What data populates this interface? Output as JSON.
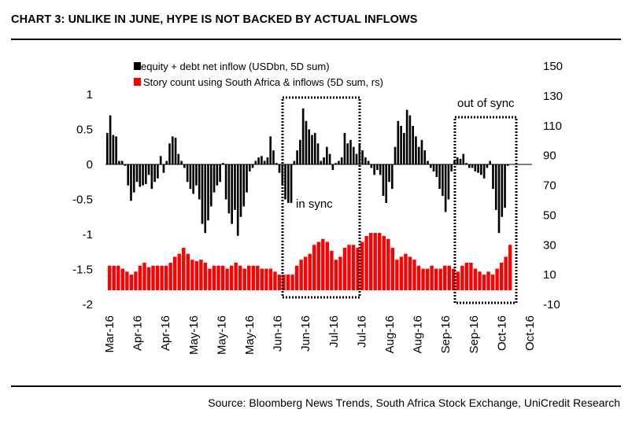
{
  "header": {
    "title": "CHART 3: UNLIKE IN JUNE, HYPE IS NOT BACKED BY ACTUAL INFLOWS"
  },
  "footer": {
    "source": "Source: Bloomberg News Trends, South Africa Stock Exchange, UniCredit Research"
  },
  "colors": {
    "inflow": "#000000",
    "story": "#ff0000",
    "box": "#000000"
  },
  "chart_data": {
    "type": "bar",
    "title": "CHART 3: UNLIKE IN JUNE, HYPE IS NOT BACKED BY ACTUAL INFLOWS",
    "xlabel": "",
    "ylabel": "",
    "x_tick_labels": [
      "Mar-16",
      "Apr-16",
      "Apr-16",
      "May-16",
      "May-16",
      "May-16",
      "Jun-16",
      "Jun-16",
      "Jul-16",
      "Jul-16",
      "Aug-16",
      "Aug-16",
      "Sep-16",
      "Sep-16",
      "Oct-16",
      "Oct-16"
    ],
    "left_axis": {
      "ylim": [
        -2,
        1
      ],
      "ticks": [
        1,
        0.5,
        0,
        -0.5,
        -1,
        -1.5,
        -2
      ],
      "tick_labels": [
        "1",
        "0.5",
        "0",
        "-0.5",
        "-1",
        "-1.5",
        "-2"
      ]
    },
    "right_axis": {
      "ylim": [
        -10,
        150
      ],
      "ticks": [
        150,
        130,
        110,
        90,
        70,
        50,
        30,
        10,
        -10
      ],
      "tick_labels": [
        "150",
        "130",
        "110",
        "90",
        "70",
        "50",
        "30",
        "10",
        "-10"
      ]
    },
    "legend": [
      "equity + debt net inflow (USDbn, 5D sum)",
      "Story count using South Africa & inflows (5D sum, rs)"
    ],
    "legend_position": "top-center",
    "annotations": [
      "in sync",
      "out of sync"
    ],
    "series": [
      {
        "name": "equity + debt net inflow (USDbn, 5D sum)",
        "axis": "left",
        "values": [
          0.45,
          0.7,
          0.42,
          0.4,
          0.05,
          0.05,
          -0.02,
          -0.3,
          -0.52,
          -0.4,
          -0.25,
          -0.32,
          -0.3,
          -0.28,
          -0.15,
          -0.35,
          -0.25,
          -0.2,
          0.12,
          -0.12,
          0.05,
          0.3,
          0.4,
          0.38,
          0.15,
          0.05,
          -0.05,
          -0.25,
          -0.35,
          -0.42,
          -0.3,
          -0.5,
          -0.85,
          -0.98,
          -0.8,
          -0.6,
          -0.4,
          -0.3,
          -0.25,
          0.02,
          -0.5,
          -0.7,
          -0.85,
          -0.65,
          -1.02,
          -0.75,
          -0.6,
          -0.4,
          -0.1,
          -0.05,
          0.05,
          0.1,
          0.12,
          0.05,
          0.1,
          0.4,
          0.2,
          0.02,
          -0.12,
          -0.3,
          -0.5,
          -0.55,
          -0.55,
          0.05,
          0.2,
          0.35,
          0.8,
          0.62,
          0.5,
          0.42,
          0.45,
          0.3,
          0.05,
          0.1,
          0.25,
          0.15,
          -0.08,
          0.02,
          0.05,
          0.1,
          0.45,
          0.3,
          0.35,
          0.25,
          0.15,
          0.3,
          0.2,
          0.1,
          0.05,
          -0.05,
          -0.15,
          -0.08,
          -0.15,
          -0.45,
          -0.55,
          -0.25,
          -0.35,
          0.25,
          0.62,
          0.55,
          0.45,
          0.78,
          0.7,
          0.55,
          0.4,
          0.25,
          0.35,
          0.2,
          0.05,
          -0.05,
          -0.1,
          -0.18,
          -0.35,
          -0.45,
          -0.68,
          -0.5,
          -0.1,
          0.05,
          0.1,
          0.08,
          0.15,
          0.02,
          -0.05,
          -0.05,
          -0.1,
          -0.12,
          -0.15,
          -0.2,
          -0.05,
          0.05,
          -0.35,
          -0.65,
          -0.98,
          -0.75,
          -0.62,
          -0.02
        ]
      },
      {
        "name": "Story count using South Africa & inflows (5D sum, rs)",
        "axis": "right",
        "values": [
          16,
          16,
          16,
          14,
          12,
          10,
          12,
          16,
          18,
          15,
          16,
          16,
          16,
          16,
          18,
          22,
          24,
          28,
          24,
          20,
          19,
          20,
          18,
          14,
          16,
          16,
          16,
          14,
          16,
          18,
          16,
          14,
          16,
          16,
          16,
          14,
          14,
          14,
          12,
          10,
          10,
          10,
          10,
          16,
          20,
          22,
          24,
          30,
          32,
          34,
          32,
          26,
          20,
          22,
          28,
          30,
          30,
          28,
          32,
          36,
          38,
          38,
          38,
          36,
          34,
          28,
          20,
          22,
          24,
          22,
          20,
          16,
          14,
          14,
          16,
          14,
          14,
          16,
          16,
          14,
          12,
          16,
          18,
          18,
          14,
          12,
          10,
          12,
          10,
          14,
          18,
          22,
          30
        ]
      }
    ]
  }
}
